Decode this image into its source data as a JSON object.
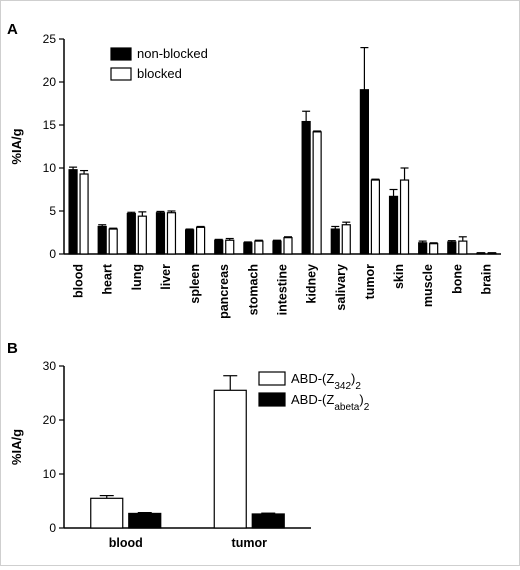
{
  "chart_data": [
    {
      "type": "bar",
      "panel": "A",
      "title": "",
      "xlabel": "",
      "ylabel": "%IA/g",
      "ylim": [
        0,
        25
      ],
      "yticks": [
        0,
        5,
        10,
        15,
        20,
        25
      ],
      "grid": false,
      "legend_position": "top-left",
      "categories": [
        "blood",
        "heart",
        "lung",
        "liver",
        "spleen",
        "pancreas",
        "stomach",
        "intestine",
        "kidney",
        "salivary",
        "tumor",
        "skin",
        "muscle",
        "bone",
        "brain"
      ],
      "series": [
        {
          "name": "non-blocked",
          "color": "#000000",
          "values": [
            9.8,
            3.2,
            4.7,
            4.8,
            2.8,
            1.6,
            1.3,
            1.5,
            15.4,
            2.9,
            19.1,
            6.7,
            1.3,
            1.4,
            0.1
          ],
          "errors": [
            0.3,
            0.2,
            0.15,
            0.15,
            0.1,
            0.1,
            0.1,
            0.1,
            1.2,
            0.3,
            4.9,
            0.8,
            0.2,
            0.15,
            0.05
          ]
        },
        {
          "name": "blocked",
          "color": "#ffffff",
          "values": [
            9.3,
            2.9,
            4.4,
            4.8,
            3.1,
            1.6,
            1.5,
            1.9,
            14.2,
            3.4,
            8.6,
            8.6,
            1.2,
            1.5,
            0.1
          ],
          "errors": [
            0.4,
            0.1,
            0.5,
            0.2,
            0.1,
            0.2,
            0.1,
            0.1,
            0.1,
            0.3,
            0.1,
            1.4,
            0.1,
            0.5,
            0.05
          ]
        }
      ]
    },
    {
      "type": "bar",
      "panel": "B",
      "title": "",
      "xlabel": "",
      "ylabel": "%IA/g",
      "ylim": [
        0,
        30
      ],
      "yticks": [
        0,
        10,
        20,
        30
      ],
      "grid": false,
      "legend_position": "top-right",
      "categories": [
        "blood",
        "tumor"
      ],
      "series": [
        {
          "name": "ABD-(Z342)2",
          "legend_parts": [
            "ABD-(Z",
            "342",
            ")",
            "2"
          ],
          "color": "#ffffff",
          "values": [
            5.5,
            25.5
          ],
          "errors": [
            0.5,
            2.7
          ]
        },
        {
          "name": "ABD-(Zabeta)2",
          "legend_parts": [
            "ABD-(Z",
            "abeta",
            ")",
            "2"
          ],
          "color": "#000000",
          "values": [
            2.7,
            2.6
          ],
          "errors": [
            0.15,
            0.15
          ]
        }
      ]
    }
  ]
}
